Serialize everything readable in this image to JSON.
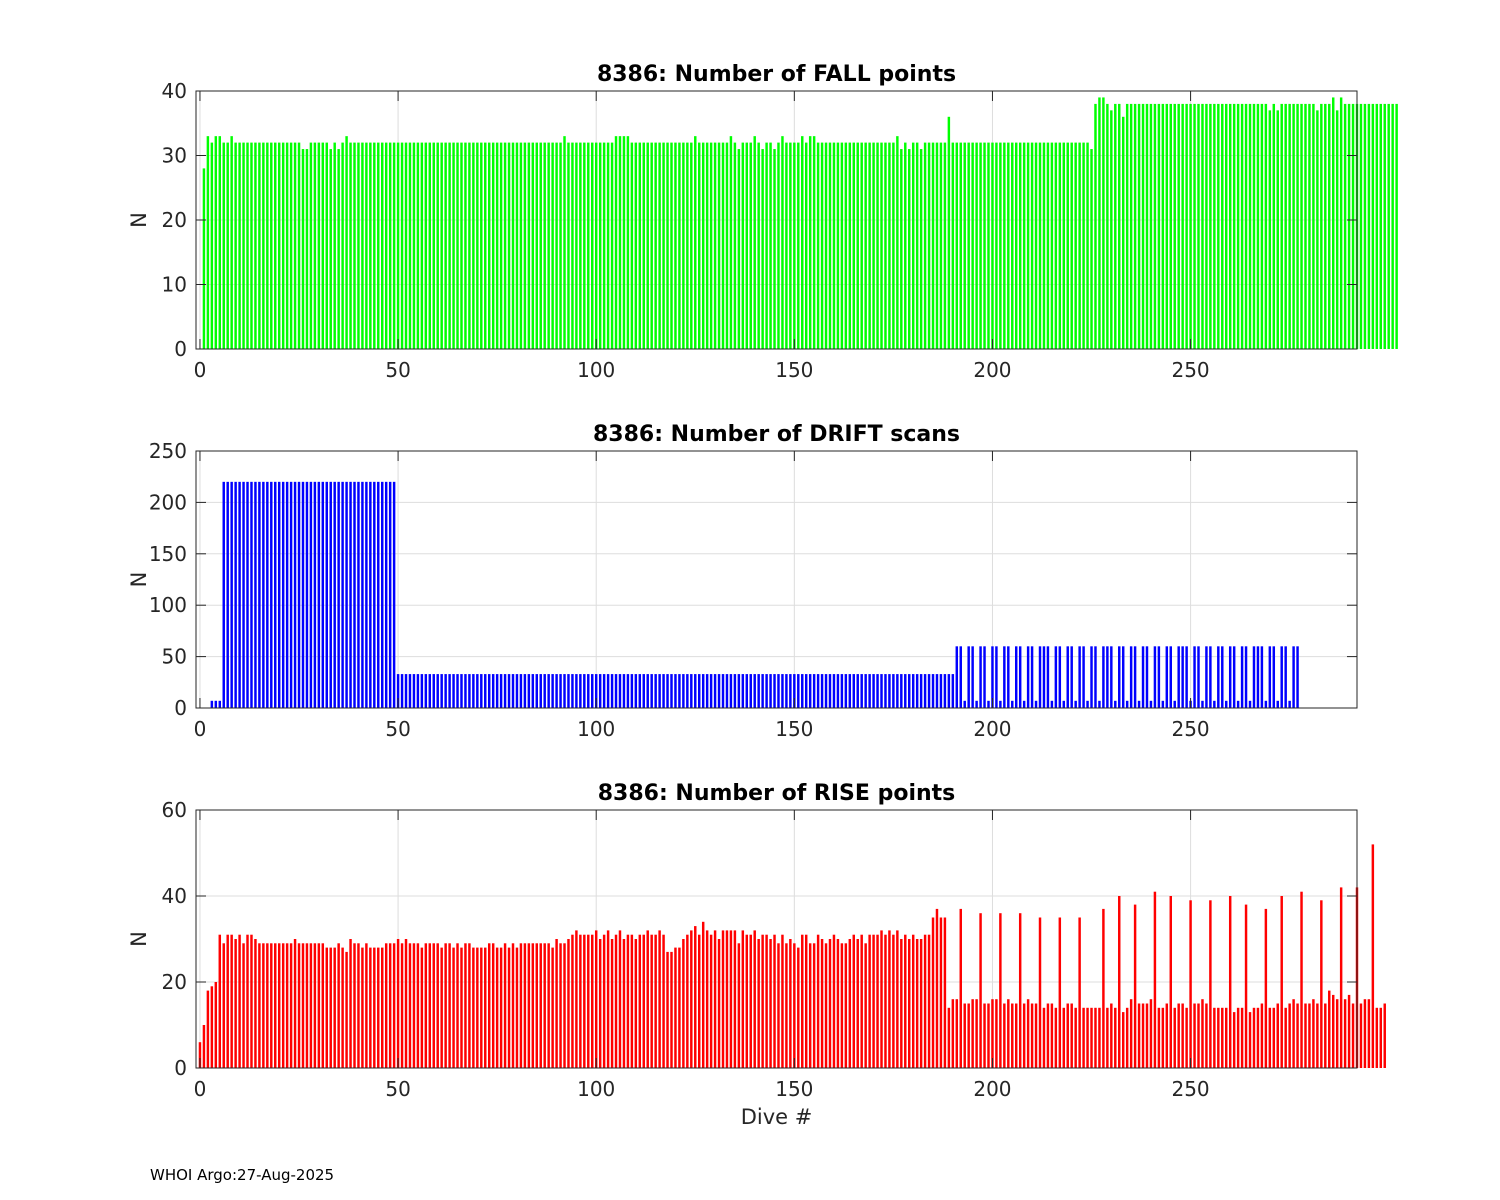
{
  "figure": {
    "footer": "WHOI Argo:27-Aug-2025",
    "xlabel": "Dive #"
  },
  "chart_data": [
    {
      "type": "bar",
      "title": "8386: Number of FALL points",
      "ylabel": "N",
      "xlabel": "",
      "xlim": [
        -1,
        292
      ],
      "ylim": [
        0,
        40
      ],
      "xticks": [
        0,
        50,
        100,
        150,
        200,
        250
      ],
      "yticks": [
        0,
        10,
        20,
        30,
        40
      ],
      "grid": true,
      "color": "#00ff00",
      "x_start": 1,
      "values": [
        28,
        33,
        32,
        33,
        33,
        32,
        32,
        33,
        32,
        32,
        32,
        32,
        32,
        32,
        32,
        32,
        32,
        32,
        32,
        32,
        32,
        32,
        32,
        32,
        32,
        31,
        31,
        32,
        32,
        32,
        32,
        32,
        31,
        32,
        31,
        32,
        33,
        32,
        32,
        32,
        32,
        32,
        32,
        32,
        32,
        32,
        32,
        32,
        32,
        32,
        32,
        32,
        32,
        32,
        32,
        32,
        32,
        32,
        32,
        32,
        32,
        32,
        32,
        32,
        32,
        32,
        32,
        32,
        32,
        32,
        32,
        32,
        32,
        32,
        32,
        32,
        32,
        32,
        32,
        32,
        32,
        32,
        32,
        32,
        32,
        32,
        32,
        32,
        32,
        32,
        32,
        33,
        32,
        32,
        32,
        32,
        32,
        32,
        32,
        32,
        32,
        32,
        32,
        32,
        33,
        33,
        33,
        33,
        32,
        32,
        32,
        32,
        32,
        32,
        32,
        32,
        32,
        32,
        32,
        32,
        32,
        32,
        32,
        32,
        33,
        32,
        32,
        32,
        32,
        32,
        32,
        32,
        32,
        33,
        32,
        31,
        32,
        32,
        32,
        33,
        32,
        31,
        32,
        32,
        31,
        32,
        33,
        32,
        32,
        32,
        32,
        33,
        32,
        33,
        33,
        32,
        32,
        32,
        32,
        32,
        32,
        32,
        32,
        32,
        32,
        32,
        32,
        32,
        32,
        32,
        32,
        32,
        32,
        32,
        32,
        33,
        31,
        32,
        31,
        32,
        32,
        31,
        32,
        32,
        32,
        32,
        32,
        32,
        36,
        32,
        32,
        32,
        32,
        32,
        32,
        32,
        32,
        32,
        32,
        32,
        32,
        32,
        32,
        32,
        32,
        32,
        32,
        32,
        32,
        32,
        32,
        32,
        32,
        32,
        32,
        32,
        32,
        32,
        32,
        32,
        32,
        32,
        32,
        32,
        31,
        38,
        39,
        39,
        38,
        37,
        38,
        38,
        36,
        38,
        38,
        38,
        38,
        38,
        38,
        38,
        38,
        38,
        38,
        38,
        38,
        38,
        38,
        38,
        38,
        38,
        38,
        38,
        38,
        38,
        38,
        38,
        38,
        38,
        38,
        38,
        38,
        38,
        38,
        38,
        38,
        38,
        38,
        38,
        38,
        37,
        38,
        37,
        38,
        38,
        38,
        38,
        38,
        38,
        38,
        38,
        38,
        37,
        38,
        38,
        38,
        39,
        37,
        39,
        38,
        38,
        38,
        38,
        38,
        38,
        38,
        38,
        38,
        38,
        38,
        38,
        38,
        38
      ]
    },
    {
      "type": "bar",
      "title": "8386: Number of DRIFT scans",
      "ylabel": "N",
      "xlabel": "",
      "xlim": [
        -1,
        292
      ],
      "ylim": [
        0,
        250
      ],
      "xticks": [
        0,
        50,
        100,
        150,
        200,
        250
      ],
      "yticks": [
        0,
        50,
        100,
        150,
        200,
        250
      ],
      "grid": true,
      "color": "#0000ff",
      "x_start": 1,
      "values": [
        0,
        0,
        7,
        7,
        7,
        220,
        220,
        220,
        220,
        220,
        220,
        220,
        220,
        220,
        220,
        220,
        220,
        220,
        220,
        220,
        220,
        220,
        220,
        220,
        220,
        220,
        220,
        220,
        220,
        220,
        220,
        220,
        220,
        220,
        220,
        220,
        220,
        220,
        220,
        220,
        220,
        220,
        220,
        220,
        220,
        220,
        220,
        220,
        220,
        33,
        33,
        33,
        33,
        33,
        33,
        33,
        33,
        33,
        33,
        33,
        33,
        33,
        33,
        33,
        33,
        33,
        33,
        33,
        33,
        33,
        33,
        33,
        33,
        33,
        33,
        33,
        33,
        33,
        33,
        33,
        33,
        33,
        33,
        33,
        33,
        33,
        33,
        33,
        33,
        33,
        33,
        33,
        33,
        33,
        33,
        33,
        33,
        33,
        33,
        33,
        33,
        33,
        33,
        33,
        33,
        33,
        33,
        33,
        33,
        33,
        33,
        33,
        33,
        33,
        33,
        33,
        33,
        33,
        33,
        33,
        33,
        33,
        33,
        33,
        33,
        33,
        33,
        33,
        33,
        33,
        33,
        33,
        33,
        33,
        33,
        33,
        33,
        33,
        33,
        33,
        33,
        33,
        33,
        33,
        33,
        33,
        33,
        33,
        33,
        33,
        33,
        33,
        33,
        33,
        33,
        33,
        33,
        33,
        33,
        33,
        33,
        33,
        33,
        33,
        33,
        33,
        33,
        33,
        33,
        33,
        33,
        33,
        33,
        33,
        33,
        33,
        33,
        33,
        33,
        33,
        33,
        33,
        33,
        33,
        33,
        33,
        33,
        33,
        33,
        33,
        60,
        60,
        7,
        60,
        60,
        7,
        60,
        60,
        7,
        60,
        60,
        7,
        60,
        60,
        7,
        60,
        60,
        7,
        60,
        60,
        7,
        60,
        60,
        60,
        7,
        60,
        60,
        7,
        60,
        60,
        7,
        60,
        60,
        7,
        60,
        60,
        7,
        60,
        60,
        60,
        7,
        60,
        60,
        7,
        60,
        60,
        7,
        60,
        60,
        7,
        60,
        60,
        7,
        60,
        60,
        7,
        60,
        60,
        60,
        7,
        60,
        60,
        7,
        60,
        60,
        7,
        60,
        60,
        7,
        60,
        60,
        7,
        60,
        60,
        7,
        60,
        60,
        60,
        7,
        60,
        60,
        7,
        60,
        60,
        7,
        60,
        60
      ]
    },
    {
      "type": "bar",
      "title": "8386: Number of RISE points",
      "ylabel": "N",
      "xlabel": "Dive #",
      "xlim": [
        -1,
        292
      ],
      "ylim": [
        0,
        60
      ],
      "xticks": [
        0,
        50,
        100,
        150,
        200,
        250
      ],
      "yticks": [
        0,
        20,
        40,
        60
      ],
      "grid": true,
      "color": "#ff0000",
      "x_start": 0,
      "values": [
        6,
        10,
        18,
        19,
        20,
        31,
        29,
        31,
        31,
        30,
        31,
        29,
        31,
        31,
        30,
        29,
        29,
        29,
        29,
        29,
        29,
        29,
        29,
        29,
        30,
        29,
        29,
        29,
        29,
        29,
        29,
        29,
        28,
        28,
        28,
        29,
        28,
        27,
        30,
        29,
        29,
        28,
        29,
        28,
        28,
        28,
        28,
        29,
        29,
        29,
        30,
        29,
        30,
        29,
        29,
        29,
        28,
        29,
        29,
        29,
        29,
        28,
        29,
        29,
        28,
        29,
        28,
        29,
        29,
        28,
        28,
        28,
        28,
        29,
        29,
        28,
        28,
        29,
        28,
        29,
        28,
        29,
        29,
        29,
        29,
        29,
        29,
        29,
        29,
        28,
        30,
        29,
        29,
        30,
        31,
        32,
        31,
        31,
        31,
        31,
        32,
        30,
        31,
        32,
        30,
        31,
        32,
        30,
        31,
        31,
        30,
        31,
        31,
        32,
        31,
        31,
        32,
        31,
        27,
        27,
        28,
        28,
        30,
        31,
        32,
        33,
        31,
        34,
        32,
        31,
        32,
        30,
        32,
        32,
        32,
        32,
        29,
        32,
        31,
        31,
        32,
        30,
        31,
        31,
        30,
        31,
        29,
        31,
        29,
        30,
        29,
        28,
        31,
        31,
        29,
        29,
        31,
        30,
        29,
        30,
        31,
        30,
        29,
        29,
        30,
        31,
        30,
        31,
        29,
        31,
        31,
        31,
        32,
        31,
        32,
        31,
        32,
        30,
        31,
        30,
        31,
        30,
        30,
        31,
        31,
        35,
        37,
        35,
        35,
        14,
        16,
        16,
        37,
        15,
        15,
        16,
        16,
        36,
        15,
        15,
        16,
        16,
        36,
        15,
        16,
        15,
        15,
        36,
        15,
        16,
        15,
        15,
        35,
        14,
        15,
        15,
        14,
        35,
        14,
        15,
        15,
        14,
        35,
        14,
        14,
        14,
        14,
        14,
        37,
        14,
        15,
        14,
        40,
        13,
        14,
        16,
        38,
        15,
        15,
        15,
        16,
        41,
        14,
        14,
        15,
        40,
        14,
        15,
        15,
        14,
        39,
        15,
        15,
        16,
        15,
        39,
        14,
        14,
        14,
        14,
        40,
        13,
        14,
        14,
        38,
        13,
        14,
        14,
        15,
        37,
        14,
        14,
        15,
        40,
        14,
        15,
        16,
        15,
        41,
        15,
        15,
        16,
        15,
        39,
        15,
        18,
        17,
        16,
        42,
        16,
        17,
        15,
        42,
        15,
        16,
        16,
        52,
        14,
        14,
        15
      ]
    }
  ]
}
